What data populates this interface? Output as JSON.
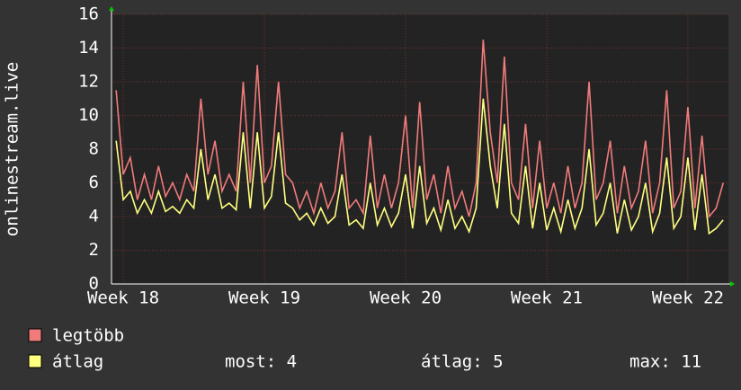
{
  "chart_data": {
    "type": "line",
    "ylabel": "onlinestream.live",
    "x": [
      17.95,
      18.0,
      18.05,
      18.1,
      18.15,
      18.2,
      18.25,
      18.3,
      18.35,
      18.4,
      18.45,
      18.5,
      18.55,
      18.6,
      18.65,
      18.7,
      18.75,
      18.8,
      18.85,
      18.9,
      18.95,
      19.0,
      19.05,
      19.1,
      19.15,
      19.2,
      19.25,
      19.3,
      19.35,
      19.4,
      19.45,
      19.5,
      19.55,
      19.6,
      19.65,
      19.7,
      19.75,
      19.8,
      19.85,
      19.9,
      19.95,
      20.0,
      20.05,
      20.1,
      20.15,
      20.2,
      20.25,
      20.3,
      20.35,
      20.4,
      20.45,
      20.5,
      20.55,
      20.6,
      20.65,
      20.7,
      20.75,
      20.8,
      20.85,
      20.9,
      20.95,
      21.0,
      21.05,
      21.1,
      21.15,
      21.2,
      21.25,
      21.3,
      21.35,
      21.4,
      21.45,
      21.5,
      21.55,
      21.6,
      21.65,
      21.7,
      21.75,
      21.8,
      21.85,
      21.9,
      21.95,
      22.0,
      22.05,
      22.1,
      22.15,
      22.2,
      22.25
    ],
    "series": [
      {
        "name": "legtöbb",
        "color": "#f07b7b",
        "values": [
          11.5,
          6.5,
          7.5,
          5.0,
          6.5,
          5.0,
          7.0,
          5.2,
          6.0,
          5.0,
          6.5,
          5.5,
          11.0,
          6.5,
          8.5,
          5.5,
          6.5,
          5.5,
          12.0,
          6.0,
          13.0,
          6.0,
          7.0,
          12.0,
          6.5,
          6.0,
          4.5,
          5.5,
          4.2,
          6.0,
          4.5,
          5.5,
          9.0,
          4.5,
          5.0,
          4.2,
          8.8,
          4.5,
          6.5,
          4.5,
          6.0,
          10.0,
          4.5,
          10.8,
          5.0,
          6.5,
          4.2,
          7.0,
          4.5,
          5.5,
          4.0,
          6.0,
          14.5,
          9.0,
          6.0,
          13.5,
          6.0,
          5.0,
          9.5,
          4.5,
          8.5,
          4.5,
          6.0,
          4.2,
          7.0,
          4.5,
          6.0,
          12.0,
          5.0,
          6.0,
          8.5,
          4.2,
          7.0,
          4.5,
          5.5,
          8.5,
          4.2,
          6.0,
          11.5,
          4.5,
          5.5,
          10.5,
          4.5,
          8.8,
          4.0,
          4.5,
          6.0
        ]
      },
      {
        "name": "átlag",
        "color": "#ffff80",
        "values": [
          8.5,
          5.0,
          5.5,
          4.2,
          5.0,
          4.2,
          5.5,
          4.3,
          4.6,
          4.2,
          5.0,
          4.5,
          8.0,
          5.0,
          6.5,
          4.5,
          4.8,
          4.4,
          9.0,
          4.5,
          9.0,
          4.5,
          5.2,
          9.0,
          4.8,
          4.5,
          3.8,
          4.2,
          3.5,
          4.5,
          3.6,
          4.0,
          6.5,
          3.5,
          3.8,
          3.3,
          6.0,
          3.5,
          4.5,
          3.4,
          4.2,
          6.5,
          3.3,
          7.0,
          3.6,
          4.5,
          3.2,
          5.0,
          3.3,
          4.0,
          3.1,
          4.5,
          11.0,
          7.0,
          4.5,
          9.5,
          4.2,
          3.6,
          7.0,
          3.3,
          6.0,
          3.2,
          4.5,
          3.1,
          5.0,
          3.3,
          4.5,
          8.0,
          3.5,
          4.2,
          6.0,
          3.0,
          5.0,
          3.2,
          4.0,
          6.0,
          3.1,
          4.2,
          7.5,
          3.3,
          4.0,
          7.5,
          3.2,
          6.5,
          3.0,
          3.3,
          3.8
        ]
      }
    ],
    "stats": [
      "most: 4",
      "átlag: 5",
      "max: 11"
    ],
    "xlim": [
      17.917,
      22.287
    ],
    "xticks": [
      {
        "value": 18,
        "label": "Week 18"
      },
      {
        "value": 19,
        "label": "Week 19"
      },
      {
        "value": 20,
        "label": "Week 20"
      },
      {
        "value": 21,
        "label": "Week 21"
      },
      {
        "value": 22,
        "label": "Week 22"
      }
    ],
    "ylim": [
      0,
      16
    ],
    "yticks": [
      0,
      2,
      4,
      6,
      8,
      10,
      12,
      14,
      16
    ],
    "grid": true
  }
}
